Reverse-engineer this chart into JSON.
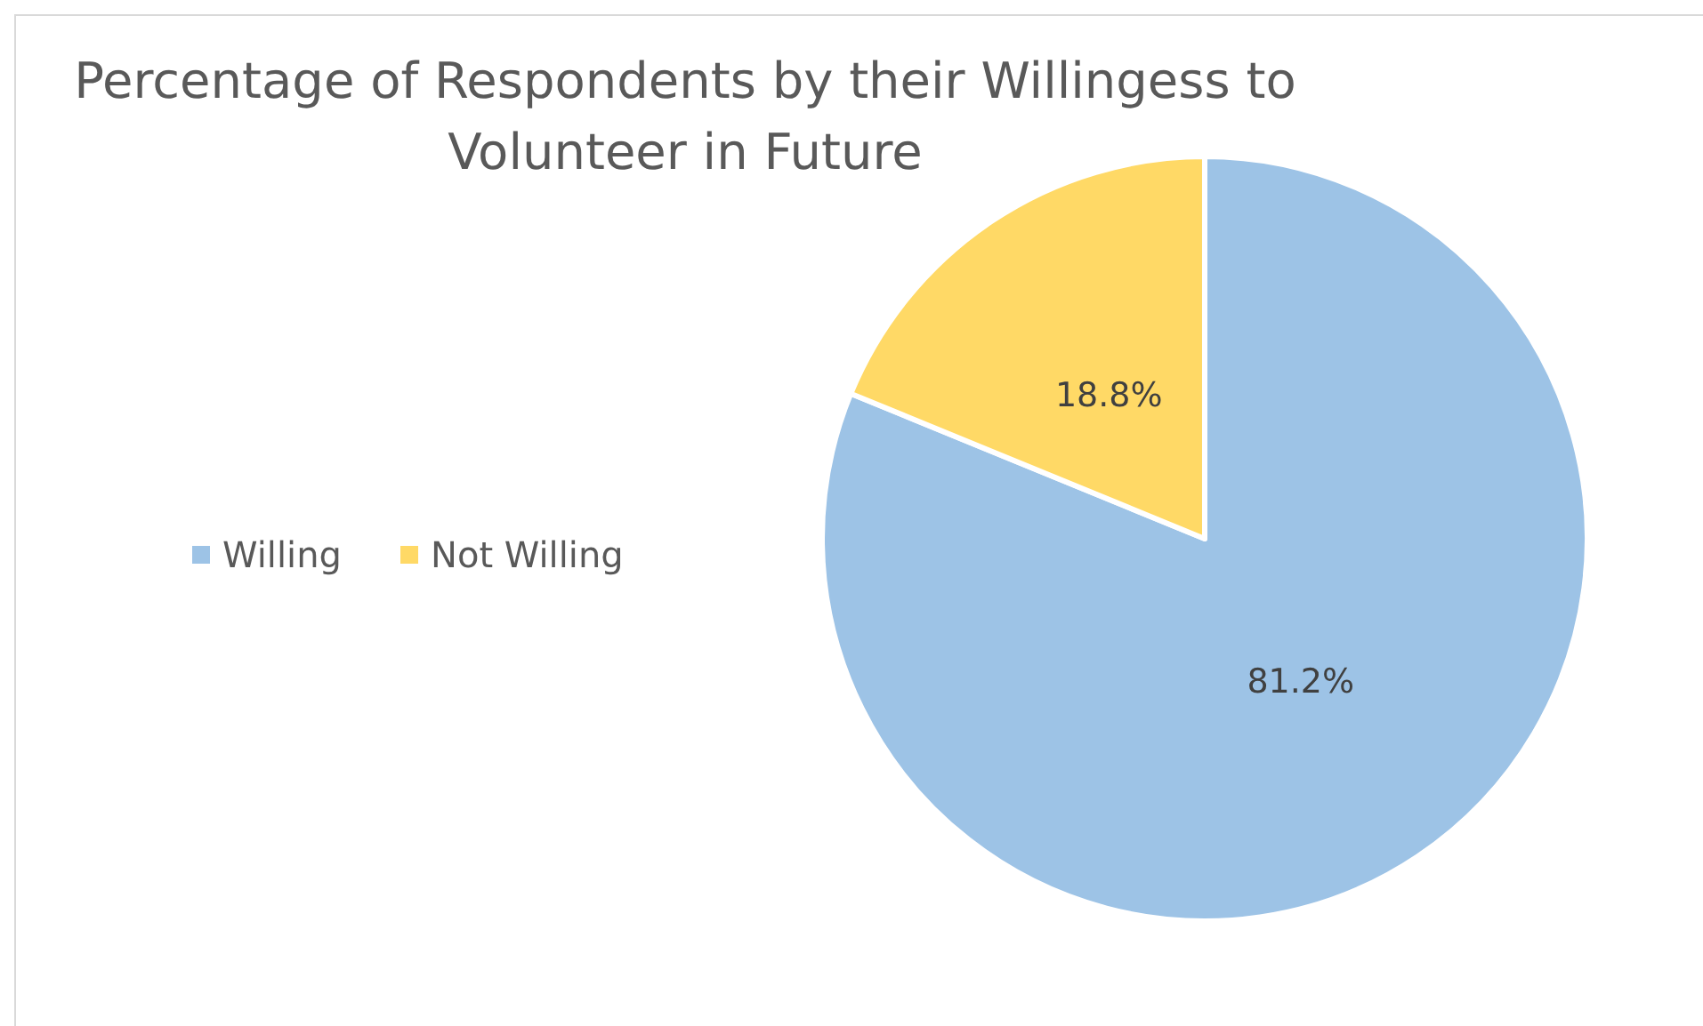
{
  "chart_data": {
    "type": "pie",
    "title": "Percentage of Respondents by their Willingess to Volunteer in Future",
    "categories": [
      "Willing",
      "Not Willing"
    ],
    "values": [
      81.2,
      18.8
    ],
    "colors": [
      "#9dc3e6",
      "#ffd966"
    ],
    "value_labels": [
      "81.2%",
      "18.8%"
    ],
    "legend": "left"
  }
}
